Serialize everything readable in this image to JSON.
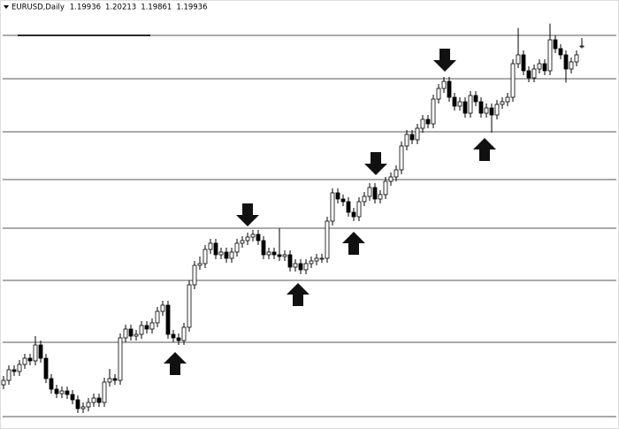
{
  "chart_data": {
    "type": "candlestick",
    "title": "EURUSD,Daily",
    "header_values": [
      1.19936,
      1.20213,
      1.19861,
      1.19936
    ],
    "ylim": [
      1.0695,
      1.215
    ],
    "levels": [
      1.203,
      1.1883,
      1.1703,
      1.1541,
      1.1376,
      1.1199,
      1.0989,
      1.0737
    ],
    "up_color": "#ffffff",
    "down_color": "#000000",
    "line_color": "#000000",
    "level_color": "#555555",
    "open": [
      1.0845,
      1.086,
      1.0896,
      1.089,
      1.0914,
      1.0935,
      1.0926,
      1.098,
      1.0935,
      1.0866,
      1.083,
      1.0815,
      1.0824,
      1.0812,
      1.0794,
      1.0764,
      1.077,
      1.0785,
      1.08,
      1.0785,
      1.0854,
      1.0866,
      1.086,
      1.1004,
      1.1034,
      1.101,
      1.1016,
      1.1046,
      1.1034,
      1.1055,
      1.1094,
      1.1115,
      1.1016,
      1.1004,
      1.0995,
      1.104,
      1.1184,
      1.125,
      1.1256,
      1.1304,
      1.1325,
      1.1286,
      1.1295,
      1.1274,
      1.1295,
      1.1325,
      1.1334,
      1.1346,
      1.1355,
      1.1334,
      1.1286,
      1.1295,
      1.1286,
      1.128,
      1.1286,
      1.1244,
      1.1256,
      1.1235,
      1.1256,
      1.1265,
      1.1274,
      1.1274,
      1.14,
      1.1496,
      1.1475,
      1.1466,
      1.143,
      1.1415,
      1.1466,
      1.1484,
      1.1514,
      1.1475,
      1.149,
      1.1535,
      1.155,
      1.1574,
      1.1655,
      1.1694,
      1.1676,
      1.1715,
      1.1745,
      1.173,
      1.1814,
      1.185,
      1.1874,
      1.182,
      1.179,
      1.1805,
      1.1766,
      1.1826,
      1.1805,
      1.1766,
      1.1784,
      1.176,
      1.1796,
      1.1805,
      1.182,
      1.1934,
      1.1964,
      1.191,
      1.1886,
      1.1916,
      1.1934,
      1.191,
      1.2015,
      1.1985,
      1.1964,
      1.1916,
      1.194,
      1.1994
    ],
    "high": [
      1.0875,
      1.0911,
      1.0911,
      1.0929,
      1.095,
      1.095,
      1.101,
      1.0995,
      1.095,
      1.0881,
      1.0845,
      1.0839,
      1.0839,
      1.0827,
      1.0809,
      1.0785,
      1.08,
      1.0815,
      1.0815,
      1.0869,
      1.0899,
      1.0881,
      1.1019,
      1.1049,
      1.1049,
      1.1031,
      1.1061,
      1.1061,
      1.107,
      1.1109,
      1.113,
      1.113,
      1.1031,
      1.1019,
      1.1055,
      1.1199,
      1.1265,
      1.128,
      1.1319,
      1.134,
      1.134,
      1.131,
      1.131,
      1.131,
      1.134,
      1.1349,
      1.1361,
      1.137,
      1.137,
      1.1349,
      1.131,
      1.131,
      1.1376,
      1.1301,
      1.1301,
      1.1271,
      1.1271,
      1.1271,
      1.128,
      1.1289,
      1.1289,
      1.1415,
      1.1511,
      1.1511,
      1.149,
      1.1481,
      1.1445,
      1.1481,
      1.1499,
      1.1529,
      1.1529,
      1.1505,
      1.155,
      1.1565,
      1.1589,
      1.167,
      1.1709,
      1.1709,
      1.173,
      1.176,
      1.176,
      1.1829,
      1.1865,
      1.1889,
      1.1889,
      1.1835,
      1.182,
      1.182,
      1.1841,
      1.1841,
      1.182,
      1.1799,
      1.1799,
      1.1811,
      1.182,
      1.1835,
      1.1949,
      1.2055,
      1.1979,
      1.1925,
      1.1931,
      1.1949,
      1.1949,
      1.207,
      1.203,
      1.2,
      1.1979,
      1.1955,
      1.1979,
      1.2021
    ],
    "low": [
      1.083,
      1.0845,
      1.0875,
      1.0875,
      1.0899,
      1.0911,
      1.0911,
      1.092,
      1.0851,
      1.0815,
      1.08,
      1.08,
      1.0797,
      1.0779,
      1.0749,
      1.0749,
      1.0755,
      1.077,
      1.077,
      1.077,
      1.0839,
      1.0845,
      1.0845,
      1.0989,
      1.0995,
      1.0995,
      1.1001,
      1.1019,
      1.1019,
      1.104,
      1.1079,
      1.1001,
      1.0989,
      1.098,
      1.098,
      1.1025,
      1.1169,
      1.1235,
      1.1241,
      1.1289,
      1.1271,
      1.1271,
      1.1259,
      1.1259,
      1.128,
      1.131,
      1.1319,
      1.1331,
      1.1319,
      1.1271,
      1.1271,
      1.1271,
      1.1265,
      1.1265,
      1.1229,
      1.1229,
      1.122,
      1.122,
      1.1241,
      1.125,
      1.1259,
      1.1259,
      1.1385,
      1.146,
      1.1451,
      1.1415,
      1.14,
      1.14,
      1.1451,
      1.1469,
      1.146,
      1.146,
      1.1475,
      1.152,
      1.1535,
      1.1559,
      1.164,
      1.1661,
      1.1661,
      1.17,
      1.1715,
      1.1715,
      1.1799,
      1.1835,
      1.1805,
      1.1775,
      1.1775,
      1.1751,
      1.1751,
      1.179,
      1.1751,
      1.1751,
      1.17,
      1.1745,
      1.1781,
      1.179,
      1.1805,
      1.1919,
      1.1895,
      1.1871,
      1.1871,
      1.1901,
      1.1895,
      1.1895,
      1.197,
      1.1949,
      1.187,
      1.1901,
      1.1925,
      1.1986
    ],
    "close": [
      1.086,
      1.0896,
      1.089,
      1.0914,
      1.0935,
      1.0926,
      1.098,
      1.0935,
      1.0866,
      1.083,
      1.0815,
      1.0824,
      1.0812,
      1.0794,
      1.0764,
      1.077,
      1.0785,
      1.08,
      1.0785,
      1.0854,
      1.0866,
      1.086,
      1.1004,
      1.1034,
      1.101,
      1.1016,
      1.1046,
      1.1034,
      1.1055,
      1.1094,
      1.1115,
      1.1016,
      1.1004,
      1.0995,
      1.104,
      1.1184,
      1.125,
      1.1256,
      1.1304,
      1.1325,
      1.1286,
      1.1295,
      1.1274,
      1.1295,
      1.1325,
      1.1334,
      1.1346,
      1.1355,
      1.1334,
      1.1286,
      1.1295,
      1.1286,
      1.128,
      1.1286,
      1.1244,
      1.1256,
      1.1235,
      1.1256,
      1.1265,
      1.1274,
      1.1274,
      1.14,
      1.1496,
      1.1475,
      1.1466,
      1.143,
      1.1415,
      1.1466,
      1.1484,
      1.1514,
      1.1475,
      1.149,
      1.1535,
      1.155,
      1.1574,
      1.1655,
      1.1694,
      1.1676,
      1.1715,
      1.1745,
      1.173,
      1.1814,
      1.185,
      1.1874,
      1.182,
      1.179,
      1.1805,
      1.1766,
      1.1826,
      1.1805,
      1.1766,
      1.1784,
      1.176,
      1.1796,
      1.1805,
      1.182,
      1.1934,
      1.1964,
      1.191,
      1.1886,
      1.1916,
      1.1934,
      1.191,
      1.2015,
      1.1985,
      1.1964,
      1.1916,
      1.194,
      1.1964,
      1.1994
    ]
  }
}
